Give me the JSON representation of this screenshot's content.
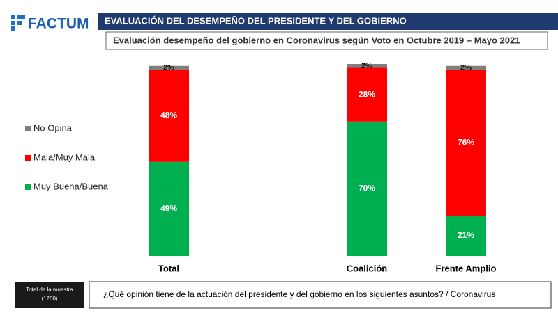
{
  "chart_data": {
    "type": "stacked_bar",
    "brand": "FACTUM",
    "title": "EVALUACIÓN DEL DESEMPEÑO DEL PRESIDENTE Y DEL GOBIERNO",
    "subtitle": "Evaluación desempeño del gobierno en Coronavirus según Voto en Octubre 2019  – Mayo 2021",
    "note_lines": [
      "Total de la muestra",
      "(1200)"
    ],
    "question": "¿Qué opinión tiene de la actuación del presidente y del gobierno en los siguientes asuntos? / Coronavirus",
    "categories": [
      "Total",
      null,
      "Coalición",
      "Frente Amplio"
    ],
    "ylim": [
      0,
      100
    ],
    "legend": "left",
    "series": [
      {
        "name": "Muy Buena/Buena",
        "color": "#00b050",
        "values": [
          49,
          null,
          70,
          21
        ],
        "value_labels": [
          "49%",
          null,
          "70%",
          "21%"
        ]
      },
      {
        "name": "Mala/Muy Mala",
        "color": "#ff0000",
        "values": [
          48,
          null,
          28,
          76
        ],
        "value_labels": [
          "48%",
          null,
          "28%",
          "76%"
        ]
      },
      {
        "name": "No Opina",
        "color": "#808080",
        "values": [
          2,
          null,
          2,
          2
        ],
        "value_labels": [
          "2%",
          null,
          "2%",
          "2%"
        ]
      }
    ]
  }
}
